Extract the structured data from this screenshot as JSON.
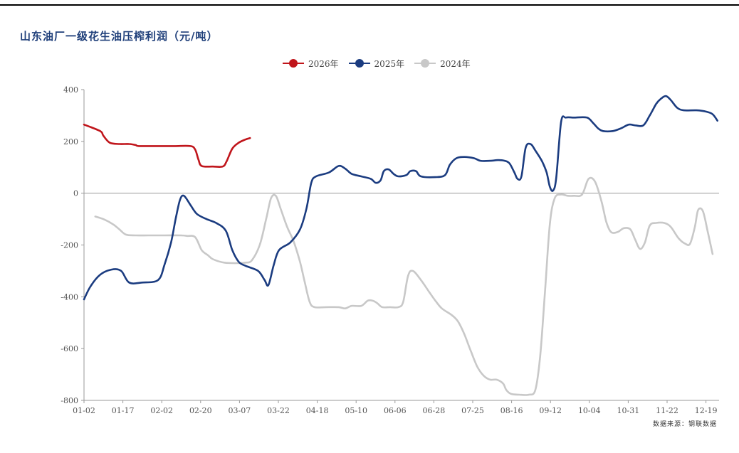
{
  "page": {
    "top_rule": true
  },
  "title": "山东油厂一级花生油压榨利润（元/吨）",
  "source": "数据来源：钢联数据",
  "chart_data": {
    "type": "line",
    "title": "山东油厂一级花生油压榨利润（元/吨）",
    "xlabel": "",
    "ylabel": "",
    "ylim": [
      -800,
      400
    ],
    "yticks": [
      400,
      200,
      0,
      -200,
      -400,
      -600,
      -800
    ],
    "x_tick_labels": [
      "01-02",
      "01-17",
      "02-02",
      "02-20",
      "03-07",
      "03-22",
      "04-18",
      "05-10",
      "06-06",
      "06-28",
      "07-25",
      "08-16",
      "09-12",
      "10-04",
      "10-31",
      "11-22",
      "12-19"
    ],
    "x_index_range": [
      0,
      16.8
    ],
    "grid": false,
    "legend_position": "top-center",
    "series": [
      {
        "name": "2026年",
        "color": "#c0151b",
        "points": [
          [
            0,
            265
          ],
          [
            0.5,
            240
          ],
          [
            0.6,
            222
          ],
          [
            0.8,
            195
          ],
          [
            1.1,
            190
          ],
          [
            1.4,
            190
          ],
          [
            1.6,
            186
          ],
          [
            1.7,
            182
          ],
          [
            2.2,
            182
          ],
          [
            2.8,
            182
          ],
          [
            3.3,
            182
          ],
          [
            3.45,
            168
          ],
          [
            3.55,
            130
          ],
          [
            3.65,
            105
          ],
          [
            4.0,
            103
          ],
          [
            4.3,
            103
          ],
          [
            4.42,
            122
          ],
          [
            4.6,
            172
          ],
          [
            4.8,
            195
          ],
          [
            5.0,
            207
          ],
          [
            5.15,
            213
          ]
        ]
      },
      {
        "name": "2025年",
        "color": "#1b3c80",
        "points": [
          [
            0,
            -410
          ],
          [
            0.2,
            -360
          ],
          [
            0.5,
            -315
          ],
          [
            0.85,
            -295
          ],
          [
            1.15,
            -300
          ],
          [
            1.4,
            -345
          ],
          [
            1.8,
            -345
          ],
          [
            2.3,
            -335
          ],
          [
            2.5,
            -275
          ],
          [
            2.7,
            -190
          ],
          [
            2.85,
            -95
          ],
          [
            2.98,
            -25
          ],
          [
            3.1,
            -10
          ],
          [
            3.3,
            -45
          ],
          [
            3.5,
            -80
          ],
          [
            3.8,
            -100
          ],
          [
            4.1,
            -115
          ],
          [
            4.4,
            -145
          ],
          [
            4.6,
            -220
          ],
          [
            4.8,
            -265
          ],
          [
            5.0,
            -280
          ],
          [
            5.4,
            -300
          ],
          [
            5.6,
            -335
          ],
          [
            5.72,
            -355
          ],
          [
            5.88,
            -280
          ],
          [
            6.05,
            -220
          ],
          [
            6.4,
            -190
          ],
          [
            6.7,
            -140
          ],
          [
            6.9,
            -60
          ],
          [
            7.05,
            40
          ],
          [
            7.2,
            65
          ],
          [
            7.6,
            80
          ],
          [
            7.9,
            105
          ],
          [
            8.1,
            95
          ],
          [
            8.3,
            75
          ],
          [
            8.6,
            65
          ],
          [
            8.9,
            55
          ],
          [
            9.05,
            40
          ],
          [
            9.2,
            50
          ],
          [
            9.3,
            85
          ],
          [
            9.45,
            92
          ],
          [
            9.6,
            75
          ],
          [
            9.75,
            65
          ],
          [
            10.0,
            70
          ],
          [
            10.12,
            85
          ],
          [
            10.3,
            85
          ],
          [
            10.45,
            65
          ],
          [
            10.9,
            62
          ],
          [
            11.2,
            70
          ],
          [
            11.35,
            110
          ],
          [
            11.55,
            135
          ],
          [
            11.8,
            140
          ],
          [
            12.1,
            135
          ],
          [
            12.3,
            125
          ],
          [
            12.6,
            125
          ],
          [
            12.85,
            128
          ],
          [
            13.05,
            125
          ],
          [
            13.2,
            115
          ],
          [
            13.35,
            80
          ],
          [
            13.45,
            55
          ],
          [
            13.57,
            65
          ],
          [
            13.7,
            175
          ],
          [
            13.85,
            190
          ],
          [
            14.0,
            165
          ],
          [
            14.2,
            125
          ],
          [
            14.35,
            80
          ],
          [
            14.45,
            25
          ],
          [
            14.55,
            10
          ],
          [
            14.65,
            60
          ],
          [
            14.8,
            275
          ],
          [
            14.95,
            292
          ],
          [
            15.2,
            292
          ],
          [
            15.6,
            292
          ],
          [
            15.8,
            270
          ],
          [
            15.95,
            250
          ],
          [
            16.1,
            240
          ],
          [
            16.4,
            240
          ],
          [
            16.65,
            250
          ],
          [
            16.9,
            265
          ],
          [
            17.1,
            262
          ],
          [
            17.35,
            262
          ],
          [
            17.55,
            300
          ],
          [
            17.75,
            345
          ],
          [
            17.9,
            365
          ],
          [
            18.05,
            375
          ],
          [
            18.2,
            360
          ],
          [
            18.4,
            330
          ],
          [
            18.6,
            320
          ],
          [
            19.0,
            320
          ],
          [
            19.3,
            315
          ],
          [
            19.5,
            305
          ],
          [
            19.65,
            280
          ]
        ]
      },
      {
        "name": "2024年",
        "color": "#c8c8c8",
        "points": [
          [
            0.35,
            -90
          ],
          [
            0.6,
            -100
          ],
          [
            0.9,
            -120
          ],
          [
            1.1,
            -140
          ],
          [
            1.3,
            -160
          ],
          [
            1.6,
            -163
          ],
          [
            2.0,
            -163
          ],
          [
            2.5,
            -163
          ],
          [
            3.0,
            -163
          ],
          [
            3.2,
            -165
          ],
          [
            3.45,
            -170
          ],
          [
            3.65,
            -220
          ],
          [
            3.85,
            -240
          ],
          [
            4.0,
            -255
          ],
          [
            4.35,
            -268
          ],
          [
            4.8,
            -270
          ],
          [
            5.0,
            -268
          ],
          [
            5.2,
            -260
          ],
          [
            5.45,
            -200
          ],
          [
            5.65,
            -100
          ],
          [
            5.8,
            -20
          ],
          [
            5.95,
            -10
          ],
          [
            6.1,
            -60
          ],
          [
            6.3,
            -130
          ],
          [
            6.5,
            -185
          ],
          [
            6.7,
            -265
          ],
          [
            6.85,
            -345
          ],
          [
            7.0,
            -420
          ],
          [
            7.15,
            -440
          ],
          [
            7.5,
            -440
          ],
          [
            7.9,
            -440
          ],
          [
            8.1,
            -445
          ],
          [
            8.3,
            -435
          ],
          [
            8.6,
            -435
          ],
          [
            8.8,
            -415
          ],
          [
            8.95,
            -415
          ],
          [
            9.1,
            -425
          ],
          [
            9.25,
            -440
          ],
          [
            9.5,
            -440
          ],
          [
            9.75,
            -440
          ],
          [
            9.9,
            -420
          ],
          [
            10.05,
            -320
          ],
          [
            10.2,
            -300
          ],
          [
            10.45,
            -335
          ],
          [
            10.7,
            -380
          ],
          [
            10.9,
            -415
          ],
          [
            11.1,
            -445
          ],
          [
            11.4,
            -470
          ],
          [
            11.6,
            -495
          ],
          [
            11.8,
            -545
          ],
          [
            12.0,
            -610
          ],
          [
            12.2,
            -670
          ],
          [
            12.4,
            -705
          ],
          [
            12.6,
            -720
          ],
          [
            12.8,
            -720
          ],
          [
            13.0,
            -735
          ],
          [
            13.1,
            -760
          ],
          [
            13.25,
            -775
          ],
          [
            13.5,
            -778
          ],
          [
            13.8,
            -778
          ],
          [
            14.0,
            -760
          ],
          [
            14.15,
            -630
          ],
          [
            14.3,
            -380
          ],
          [
            14.45,
            -120
          ],
          [
            14.6,
            -20
          ],
          [
            14.8,
            -5
          ],
          [
            15.0,
            -10
          ],
          [
            15.2,
            -10
          ],
          [
            15.45,
            -5
          ],
          [
            15.65,
            55
          ],
          [
            15.85,
            45
          ],
          [
            16.05,
            -30
          ],
          [
            16.2,
            -110
          ],
          [
            16.35,
            -150
          ],
          [
            16.55,
            -150
          ],
          [
            16.75,
            -135
          ],
          [
            16.95,
            -140
          ],
          [
            17.1,
            -180
          ],
          [
            17.25,
            -215
          ],
          [
            17.4,
            -190
          ],
          [
            17.55,
            -125
          ],
          [
            17.75,
            -115
          ],
          [
            18.0,
            -115
          ],
          [
            18.2,
            -130
          ],
          [
            18.45,
            -175
          ],
          [
            18.65,
            -195
          ],
          [
            18.8,
            -195
          ],
          [
            18.95,
            -130
          ],
          [
            19.05,
            -65
          ],
          [
            19.2,
            -70
          ],
          [
            19.35,
            -150
          ],
          [
            19.5,
            -235
          ]
        ]
      }
    ]
  }
}
